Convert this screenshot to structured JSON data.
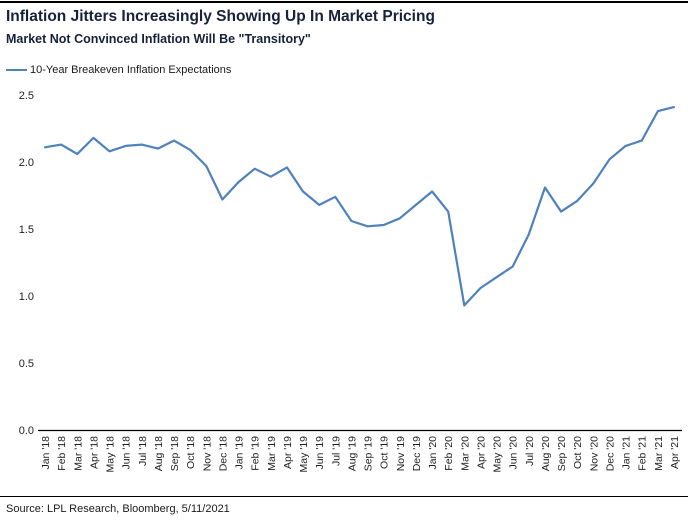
{
  "header": {
    "title": "Inflation Jitters Increasingly Showing Up In Market Pricing",
    "subtitle": "Market Not Convinced Inflation Will Be \"Transitory\""
  },
  "legend": {
    "label": "10-Year Breakeven Inflation Expectations"
  },
  "source": "Source: LPL Research, Bloomberg, 5/11/2021",
  "colors": {
    "line": "#4f81bd",
    "title_text": "#16213a",
    "axis": "#000000",
    "tick_text": "#1f1f1f"
  },
  "chart_data": {
    "type": "line",
    "title": "Inflation Jitters Increasingly Showing Up In Market Pricing",
    "subtitle": "Market Not Convinced Inflation Will Be \"Transitory\"",
    "legend_position": "top-left",
    "grid": false,
    "xlabel": "",
    "ylabel": "",
    "ylim": [
      0.0,
      2.5
    ],
    "yticks": [
      0.0,
      0.5,
      1.0,
      1.5,
      2.0,
      2.5
    ],
    "categories": [
      "Jan '18",
      "Feb '18",
      "Mar '18",
      "Apr '18",
      "May '18",
      "Jun '18",
      "Jul '18",
      "Aug '18",
      "Sep '18",
      "Oct '18",
      "Nov '18",
      "Dec '18",
      "Jan '19",
      "Feb '19",
      "Mar '19",
      "Apr '19",
      "May '19",
      "Jun '19",
      "Jul '19",
      "Aug '19",
      "Sep '19",
      "Oct '19",
      "Nov '19",
      "Dec '19",
      "Jan '20",
      "Feb '20",
      "Mar '20",
      "Apr '20",
      "May '20",
      "Jun '20",
      "Jul '20",
      "Aug '20",
      "Sep '20",
      "Oct '20",
      "Nov '20",
      "Dec '20",
      "Jan '21",
      "Feb '21",
      "Mar '21",
      "Apr '21"
    ],
    "series": [
      {
        "name": "10-Year Breakeven Inflation Expectations",
        "values": [
          2.11,
          2.13,
          2.06,
          2.18,
          2.08,
          2.12,
          2.13,
          2.1,
          2.16,
          2.09,
          1.97,
          1.72,
          1.85,
          1.95,
          1.89,
          1.96,
          1.78,
          1.68,
          1.74,
          1.56,
          1.52,
          1.53,
          1.58,
          1.68,
          1.78,
          1.63,
          0.93,
          1.06,
          1.14,
          1.22,
          1.46,
          1.81,
          1.63,
          1.71,
          1.84,
          2.02,
          2.12,
          2.16,
          2.38,
          2.41
        ]
      }
    ]
  }
}
